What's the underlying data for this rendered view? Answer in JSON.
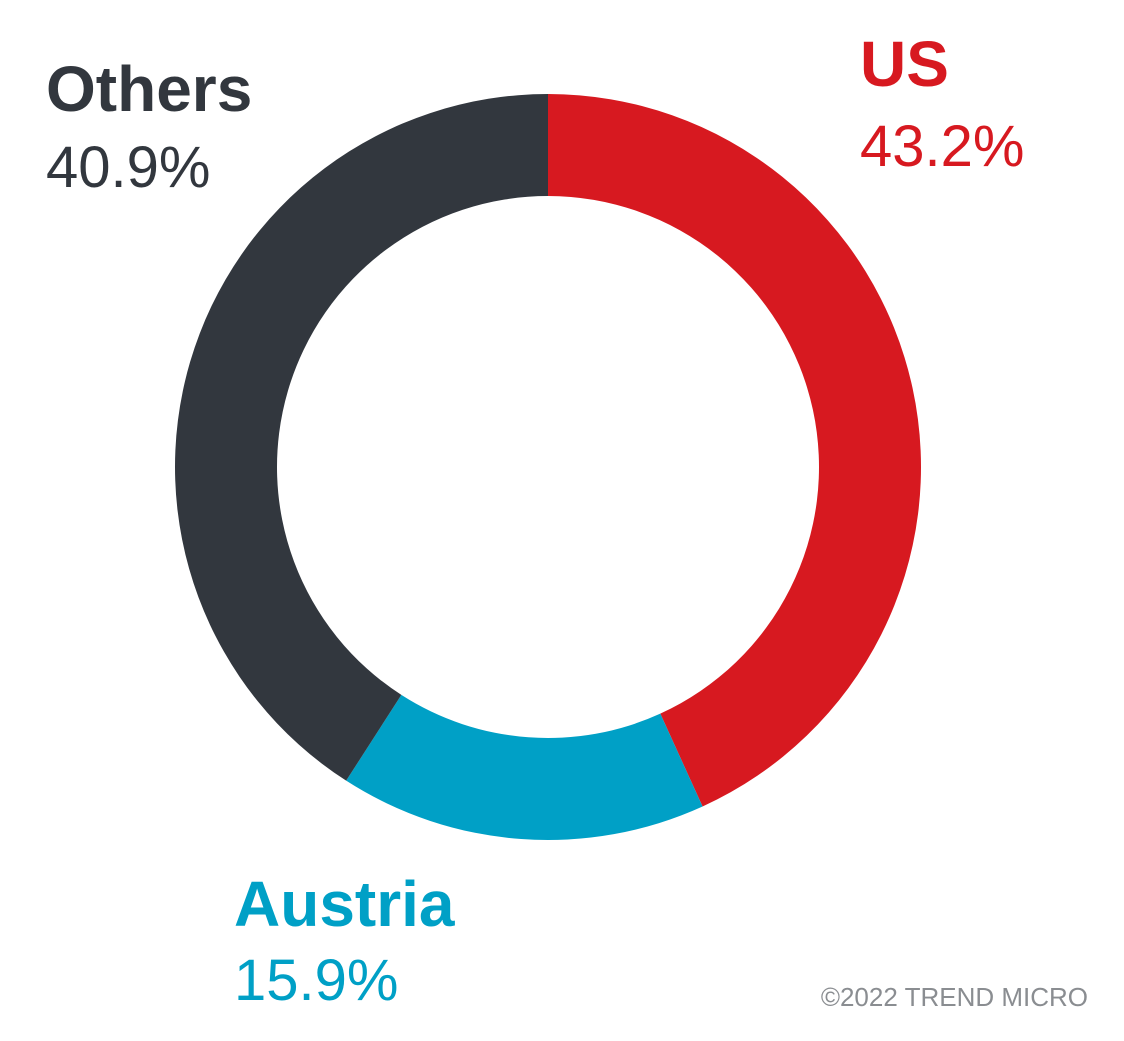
{
  "chart_data": {
    "type": "pie",
    "categories": [
      "US",
      "Austria",
      "Others"
    ],
    "values": [
      43.2,
      15.9,
      40.9
    ],
    "value_labels": [
      "43.2%",
      "15.9%",
      "40.9%"
    ],
    "colors": [
      "#d71920",
      "#00a0c6",
      "#32373e"
    ],
    "credit": "©2022 TREND MICRO"
  }
}
